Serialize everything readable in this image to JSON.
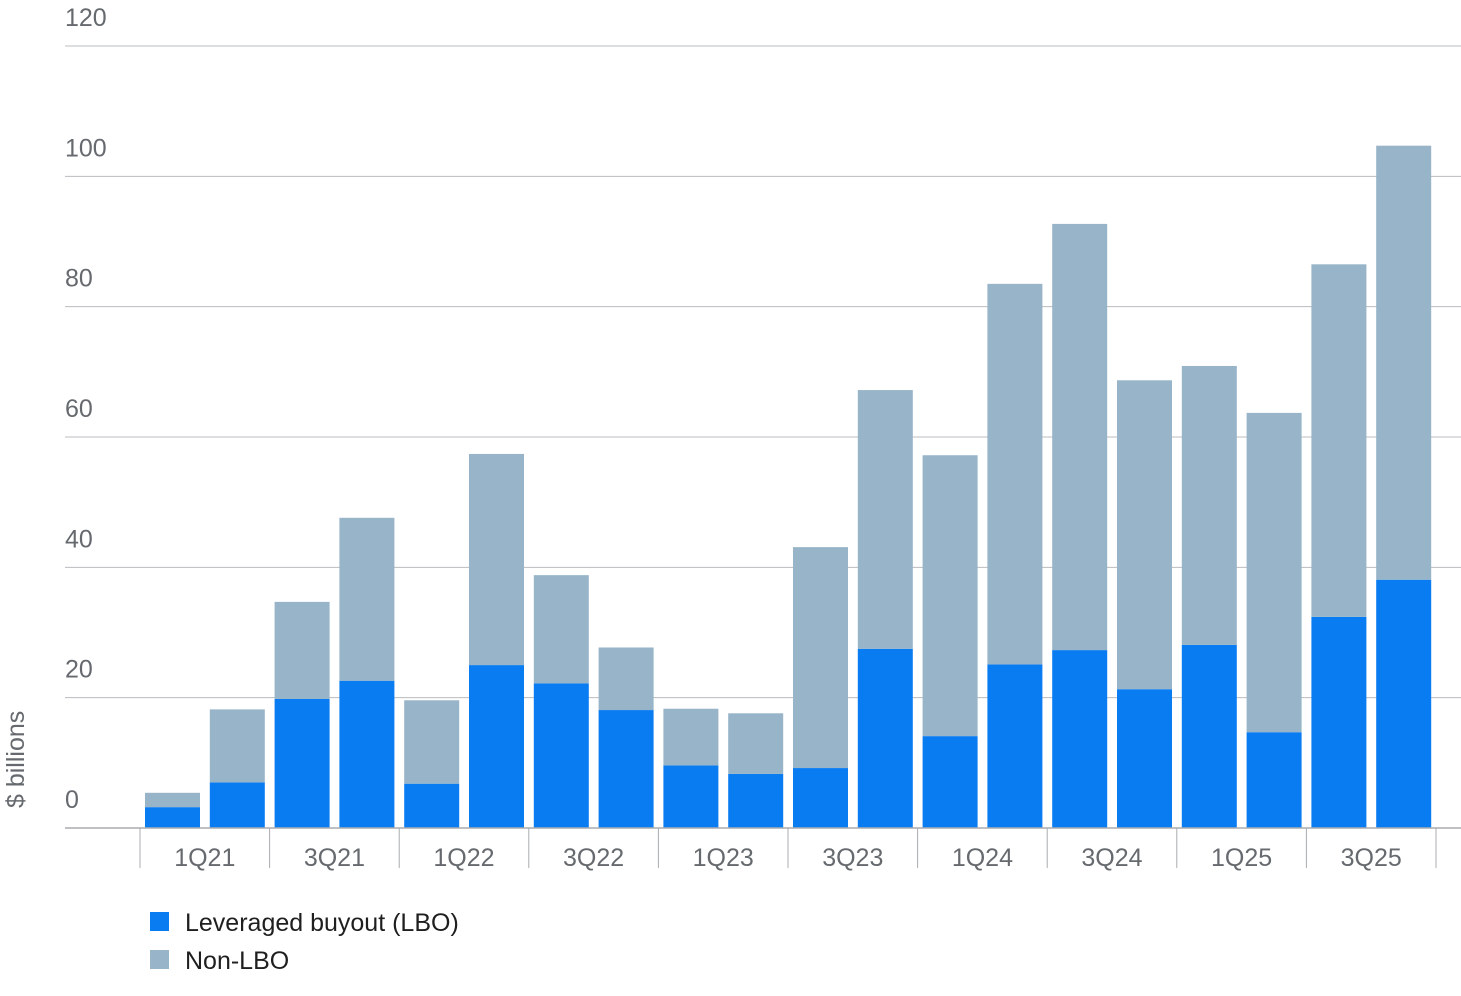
{
  "chart_data": {
    "type": "bar",
    "stacked": true,
    "ylabel": "$ billions",
    "ylim": [
      0,
      120
    ],
    "yticks": [
      0,
      20,
      40,
      60,
      80,
      100,
      120
    ],
    "grid": true,
    "legend_position": "bottom-left",
    "categories": [
      "1Q21",
      "2Q21",
      "3Q21",
      "4Q21",
      "1Q22",
      "2Q22",
      "3Q22",
      "4Q22",
      "1Q23",
      "2Q23",
      "3Q23",
      "4Q23",
      "1Q24",
      "2Q24",
      "3Q24",
      "4Q24",
      "1Q25",
      "2Q25",
      "3Q25",
      "4Q25"
    ],
    "category_labels": [
      "1Q21",
      "3Q21",
      "1Q22",
      "3Q22",
      "1Q23",
      "3Q23",
      "1Q24",
      "3Q24",
      "1Q25",
      "3Q25"
    ],
    "series": [
      {
        "name": "Leveraged buyout (LBO)",
        "color": "#0a7cf2",
        "values": [
          3.2,
          7.0,
          19.8,
          22.6,
          6.8,
          25.0,
          22.2,
          18.1,
          9.6,
          8.3,
          9.2,
          27.5,
          14.1,
          25.1,
          27.3,
          21.3,
          28.1,
          14.7,
          32.4,
          38.1
        ]
      },
      {
        "name": "Non-LBO",
        "color": "#97b4c8",
        "values": [
          2.2,
          11.2,
          14.9,
          25.0,
          12.8,
          32.4,
          16.6,
          9.6,
          8.7,
          9.3,
          33.9,
          39.7,
          43.1,
          58.4,
          65.4,
          47.4,
          42.8,
          49.0,
          54.1,
          66.6
        ]
      }
    ]
  }
}
